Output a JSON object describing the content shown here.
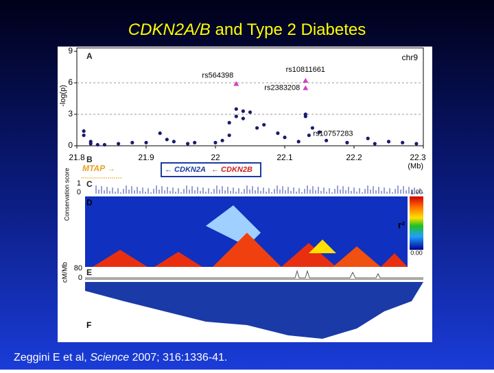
{
  "title": {
    "gene": "CDKN2A/B",
    "rest": "and Type 2 Diabetes"
  },
  "citation": {
    "authors": "Zeggini E et al,",
    "journal": "Science",
    "details": "2007; 316:1336-41."
  },
  "figure": {
    "panel_a": {
      "label": "A",
      "ylabel": "-log(p)",
      "chrom": "chr9",
      "x_unit": "(Mb)",
      "xlim": [
        21.8,
        22.3
      ],
      "ylim": [
        0,
        9
      ],
      "xticks": [
        21.8,
        21.9,
        22,
        22.1,
        22.2,
        22.3
      ],
      "yticks": [
        0,
        3,
        6,
        9
      ],
      "dashed_at": [
        3,
        6
      ],
      "x": [
        21.81,
        21.81,
        21.82,
        21.82,
        21.83,
        21.84,
        21.86,
        21.88,
        21.9,
        21.92,
        21.93,
        21.94,
        21.96,
        21.97,
        22.0,
        22.01,
        22.02,
        22.02,
        22.03,
        22.03,
        22.04,
        22.04,
        22.05,
        22.06,
        22.07,
        22.09,
        22.1,
        22.12,
        22.13,
        22.13,
        22.14,
        22.15,
        22.16,
        22.19,
        22.22,
        22.23,
        22.25,
        22.27,
        22.29
      ],
      "y": [
        1.4,
        1.0,
        0.4,
        0.2,
        0.1,
        0.1,
        0.2,
        0.3,
        0.3,
        1.2,
        0.6,
        0.4,
        0.2,
        0.3,
        0.3,
        0.5,
        1.0,
        2.2,
        2.8,
        3.5,
        3.3,
        2.6,
        3.2,
        1.7,
        2.0,
        1.2,
        0.8,
        0.4,
        3.0,
        2.8,
        1.7,
        1.3,
        0.5,
        0.3,
        0.7,
        0.2,
        0.4,
        0.3,
        0.2
      ],
      "snps": [
        {
          "name": "rs564398",
          "x": 22.03,
          "y": 5.9
        },
        {
          "name": "rs10811661",
          "x": 22.13,
          "y": 6.2
        },
        {
          "name": "rs2383208",
          "x": 22.13,
          "y": 5.5
        },
        {
          "name": "rs10757283",
          "x": 22.135,
          "y": 1.0
        }
      ]
    },
    "panel_b": {
      "label": "B",
      "mtap": "MTAP →",
      "cdkn2a": "← CDKN2A",
      "cdkn2b": "← CDKN2B"
    },
    "panel_c": {
      "label": "C",
      "ylabel": "Conservation score",
      "top": "1",
      "bottom": "0"
    },
    "panel_d": {
      "label": "D",
      "legend_top": "1.00",
      "legend_bottom": "0.00",
      "legend_title": "r²"
    },
    "panel_e": {
      "label": "E",
      "ylabel": "cM/Mb",
      "top": "80",
      "bottom": "0"
    },
    "panel_f": {
      "label": "F"
    }
  }
}
